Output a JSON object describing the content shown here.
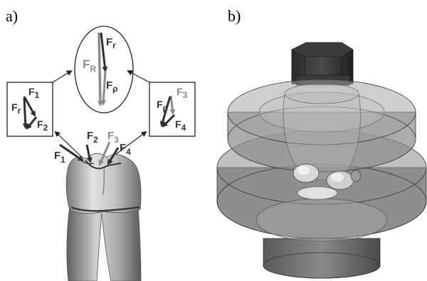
{
  "panels": [
    {
      "label": "a)"
    },
    {
      "label": "b)"
    }
  ],
  "force_labels": {
    "resultant_oval": {
      "r": "F",
      "r_sub": "r",
      "R": "F",
      "R_sub": "R",
      "p": "F",
      "p_sub": "ρ"
    },
    "left_box": {
      "f1": "F",
      "f1_sub": "1",
      "fr": "F",
      "fr_sub": "r",
      "f2": "F",
      "f2_sub": "2"
    },
    "right_box": {
      "fp": "F",
      "fp_sub": "ρ",
      "f3": "F",
      "f3_sub": "3",
      "f4": "F",
      "f4_sub": "4"
    },
    "tooth": {
      "f1": "F",
      "f1_sub": "1",
      "f2": "F",
      "f2_sub": "2",
      "f3": "F",
      "f3_sub": "3",
      "f4": "F",
      "f4_sub": "4"
    }
  },
  "colors": {
    "dark_arrow": "#2f2f2f",
    "light_arrow": "#8c8c8c",
    "tooth": "#b9b9b9",
    "render_gray": "#6e6e6e",
    "glass": "#9a9a9a"
  }
}
